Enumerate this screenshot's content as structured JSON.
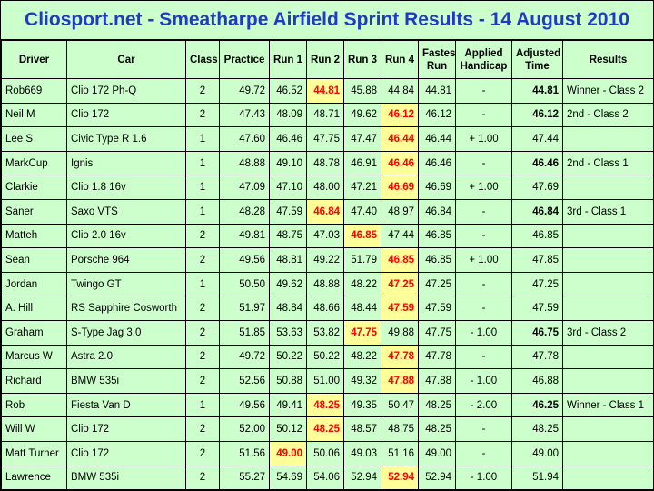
{
  "title": "Cliosport.net - Smeatharpe Airfield Sprint Results - 14 August 2010",
  "colors": {
    "background": "#ccffcc",
    "title": "#1f39c8",
    "highlight_bg": "#ffff99",
    "highlight_text": "#ff0000"
  },
  "columns": [
    {
      "line1": "Driver",
      "line2": ""
    },
    {
      "line1": "Car",
      "line2": ""
    },
    {
      "line1": "Class",
      "line2": ""
    },
    {
      "line1": "Practice",
      "line2": ""
    },
    {
      "line1": "Run 1",
      "line2": ""
    },
    {
      "line1": "Run 2",
      "line2": ""
    },
    {
      "line1": "Run 3",
      "line2": ""
    },
    {
      "line1": "Run 4",
      "line2": ""
    },
    {
      "line1": "Fastest",
      "line2": "Run"
    },
    {
      "line1": "Applied",
      "line2": "Handicap"
    },
    {
      "line1": "Adjusted",
      "line2": "Time"
    },
    {
      "line1": "Results",
      "line2": ""
    }
  ],
  "rows": [
    {
      "driver": "Rob669",
      "car": "Clio 172 Ph-Q",
      "class": "2",
      "practice": "49.72",
      "runs": [
        "46.52",
        "44.81",
        "45.88",
        "44.84"
      ],
      "best_run": 1,
      "fastest": "44.81",
      "handicap": "-",
      "adjusted": "44.81",
      "adjusted_bold": true,
      "result": "Winner - Class 2"
    },
    {
      "driver": "Neil M",
      "car": "Clio 172",
      "class": "2",
      "practice": "47.43",
      "runs": [
        "48.09",
        "48.71",
        "49.62",
        "46.12"
      ],
      "best_run": 3,
      "fastest": "46.12",
      "handicap": "-",
      "adjusted": "46.12",
      "adjusted_bold": true,
      "result": "2nd - Class 2"
    },
    {
      "driver": "Lee S",
      "car": "Civic Type R 1.6",
      "class": "1",
      "practice": "47.60",
      "runs": [
        "46.46",
        "47.75",
        "47.47",
        "46.44"
      ],
      "best_run": 3,
      "fastest": "46.44",
      "handicap": "+ 1.00",
      "adjusted": "47.44",
      "adjusted_bold": false,
      "result": ""
    },
    {
      "driver": "MarkCup",
      "car": "Ignis",
      "class": "1",
      "practice": "48.88",
      "runs": [
        "49.10",
        "48.78",
        "46.91",
        "46.46"
      ],
      "best_run": 3,
      "fastest": "46.46",
      "handicap": "-",
      "adjusted": "46.46",
      "adjusted_bold": true,
      "result": "2nd - Class 1"
    },
    {
      "driver": "Clarkie",
      "car": "Clio 1.8 16v",
      "class": "1",
      "practice": "47.09",
      "runs": [
        "47.10",
        "48.00",
        "47.21",
        "46.69"
      ],
      "best_run": 3,
      "fastest": "46.69",
      "handicap": "+ 1.00",
      "adjusted": "47.69",
      "adjusted_bold": false,
      "result": ""
    },
    {
      "driver": "Saner",
      "car": "Saxo VTS",
      "class": "1",
      "practice": "48.28",
      "runs": [
        "47.59",
        "46.84",
        "47.40",
        "48.97"
      ],
      "best_run": 1,
      "fastest": "46.84",
      "handicap": "-",
      "adjusted": "46.84",
      "adjusted_bold": true,
      "result": "3rd - Class 1"
    },
    {
      "driver": "Matteh",
      "car": "Clio 2.0 16v",
      "class": "2",
      "practice": "49.81",
      "runs": [
        "48.75",
        "47.03",
        "46.85",
        "47.44"
      ],
      "best_run": 2,
      "fastest": "46.85",
      "handicap": "-",
      "adjusted": "46.85",
      "adjusted_bold": false,
      "result": ""
    },
    {
      "driver": "Sean",
      "car": "Porsche 964",
      "class": "2",
      "practice": "49.56",
      "runs": [
        "48.81",
        "49.22",
        "51.79",
        "46.85"
      ],
      "best_run": 3,
      "fastest": "46.85",
      "handicap": "+ 1.00",
      "adjusted": "47.85",
      "adjusted_bold": false,
      "result": ""
    },
    {
      "driver": "Jordan",
      "car": "Twingo GT",
      "class": "1",
      "practice": "50.50",
      "runs": [
        "49.62",
        "48.88",
        "48.22",
        "47.25"
      ],
      "best_run": 3,
      "fastest": "47.25",
      "handicap": "-",
      "adjusted": "47.25",
      "adjusted_bold": false,
      "result": ""
    },
    {
      "driver": "A. Hill",
      "car": "RS Sapphire Cosworth",
      "class": "2",
      "practice": "51.97",
      "runs": [
        "48.84",
        "48.66",
        "48.44",
        "47.59"
      ],
      "best_run": 3,
      "fastest": "47.59",
      "handicap": "-",
      "adjusted": "47.59",
      "adjusted_bold": false,
      "result": ""
    },
    {
      "driver": "Graham",
      "car": "S-Type Jag 3.0",
      "class": "2",
      "practice": "51.85",
      "runs": [
        "53.63",
        "53.82",
        "47.75",
        "49.88"
      ],
      "best_run": 2,
      "fastest": "47.75",
      "handicap": "- 1.00",
      "adjusted": "46.75",
      "adjusted_bold": true,
      "result": "3rd - Class 2"
    },
    {
      "driver": "Marcus W",
      "car": "Astra 2.0",
      "class": "2",
      "practice": "49.72",
      "runs": [
        "50.22",
        "50.22",
        "48.22",
        "47.78"
      ],
      "best_run": 3,
      "fastest": "47.78",
      "handicap": "-",
      "adjusted": "47.78",
      "adjusted_bold": false,
      "result": ""
    },
    {
      "driver": "Richard",
      "car": "BMW 535i",
      "class": "2",
      "practice": "52.56",
      "runs": [
        "50.88",
        "51.00",
        "49.32",
        "47.88"
      ],
      "best_run": 3,
      "fastest": "47.88",
      "handicap": "- 1.00",
      "adjusted": "46.88",
      "adjusted_bold": false,
      "result": ""
    },
    {
      "driver": "Rob",
      "car": "Fiesta Van D",
      "class": "1",
      "practice": "49.56",
      "runs": [
        "49.41",
        "48.25",
        "49.35",
        "50.47"
      ],
      "best_run": 1,
      "fastest": "48.25",
      "handicap": "- 2.00",
      "adjusted": "46.25",
      "adjusted_bold": true,
      "result": "Winner - Class 1"
    },
    {
      "driver": "Will W",
      "car": "Clio 172",
      "class": "2",
      "practice": "52.00",
      "runs": [
        "50.12",
        "48.25",
        "48.57",
        "48.75"
      ],
      "best_run": 1,
      "fastest": "48.25",
      "handicap": "-",
      "adjusted": "48.25",
      "adjusted_bold": false,
      "result": ""
    },
    {
      "driver": "Matt Turner",
      "car": "Clio 172",
      "class": "2",
      "practice": "51.56",
      "runs": [
        "49.00",
        "50.06",
        "49.03",
        "51.16"
      ],
      "best_run": 0,
      "fastest": "49.00",
      "handicap": "-",
      "adjusted": "49.00",
      "adjusted_bold": false,
      "result": ""
    },
    {
      "driver": "Lawrence",
      "car": "BMW 535i",
      "class": "2",
      "practice": "55.27",
      "runs": [
        "54.69",
        "54.06",
        "52.94",
        "52.94"
      ],
      "best_run": 3,
      "fastest": "52.94",
      "handicap": "- 1.00",
      "adjusted": "51.94",
      "adjusted_bold": false,
      "result": ""
    }
  ]
}
